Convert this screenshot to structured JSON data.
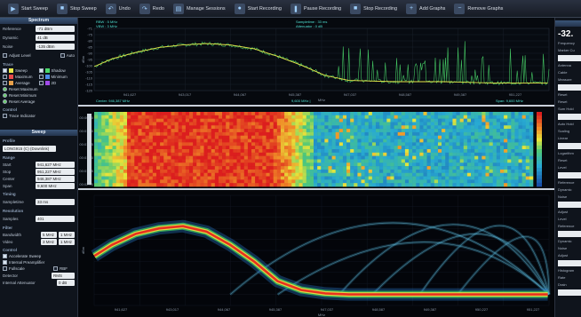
{
  "toolbar": [
    {
      "label": "Start Sweep",
      "icon": "play-icon"
    },
    {
      "label": "Stop Sweep",
      "icon": "stop-icon"
    },
    {
      "label": "Undo",
      "icon": "undo-icon"
    },
    {
      "label": "Redo",
      "icon": "redo-icon"
    },
    {
      "label": "Manage Sessions",
      "icon": "session-icon"
    },
    {
      "label": "Start Recording",
      "icon": "record-icon"
    },
    {
      "label": "Pause Recording",
      "icon": "pause-icon"
    },
    {
      "label": "Stop Recording",
      "icon": "stop-record-icon"
    },
    {
      "label": "Add Graphs",
      "icon": "add-graph-icon"
    },
    {
      "label": "Remove Graphs",
      "icon": "remove-graph-icon"
    }
  ],
  "spectrum_panel": {
    "title": "Spectrum",
    "reference_label": "Reference",
    "reference_value": "-71 dBm",
    "dynamic_label": "Dynamic",
    "dynamic_value": "41 dB",
    "noise_label": "Noise",
    "noise_value": "-135 dBm",
    "adjust_level_label": "Adjust Level",
    "auto_label": "Auto",
    "trace_header": "Trace",
    "traces": [
      {
        "label": "Sweep",
        "color": "#e8e84a",
        "checked": true
      },
      {
        "label": "Shadow",
        "color": "#4ad86a",
        "checked": true
      },
      {
        "label": "Maximum",
        "color": "#e84a4a",
        "checked": false
      },
      {
        "label": "Minimum",
        "color": "#4a8ae8",
        "checked": false
      },
      {
        "label": "Average",
        "color": "#e8a04a",
        "checked": false
      },
      {
        "label": "2D",
        "color": "#a04ae8",
        "checked": false
      }
    ],
    "radios": [
      {
        "label": "Reset Maximum",
        "on": true
      },
      {
        "label": "Reset Minimum",
        "on": true
      },
      {
        "label": "Reset Average",
        "on": true
      }
    ],
    "control_header": "Control",
    "trace_indicator_label": "Trace Indicator"
  },
  "sweep_panel": {
    "title": "Sweep",
    "profile_header": "Profile",
    "profile_value": "LONG915 (C) (Downlink)",
    "range_header": "Range",
    "start_label": "Start",
    "start_value": "941,627 MHz",
    "stop_label": "Stop",
    "stop_value": "951,227 MHz",
    "center_label": "Center",
    "center_value": "946,387 MHz",
    "span_label": "Span",
    "span_value": "9,600 MHz",
    "timing_header": "Timing",
    "sampletime_label": "Sampletime",
    "sampletime_value": "33 ms",
    "resolution_header": "Resolution",
    "samples_label": "Samples",
    "samples_value": "401",
    "filter_header": "Filter",
    "bandwidth_label": "Bandwidth",
    "bandwidth_value": "5 MHz",
    "bandwidth_value2": "1 MHz",
    "video_label": "Video",
    "video_value": "3 MHz",
    "video_value2": "1 MHz",
    "control_header": "Control",
    "accelerate_label": "Accelerate Sweep",
    "preamp_label": "Internal Preamplifier",
    "fullscale_label": "Fullscale",
    "rbf_label": "RBF",
    "detector_label": "Detector",
    "detector_value": "RMS",
    "attenuator_label": "Internal Attenuator",
    "attenuator_value": "0 dB"
  },
  "spectrum_graph": {
    "rbw": "RBW : 5 MHz",
    "vbw": "VBW : 3 MHz",
    "sampletime": "Sampletime : 33 ms",
    "attenuator": "Attenuator : 0 dB",
    "ylabel": "dBm",
    "xlabel": "MHz",
    "yticks": [
      "-71",
      "-75",
      "-80",
      "-85",
      "-90",
      "-95",
      "-100",
      "-105",
      "-110",
      "-115",
      "-120"
    ],
    "xticks": [
      "941,627",
      "943,017",
      "944,067",
      "945,387",
      "947,037",
      "948,587",
      "949,387",
      "951,227"
    ],
    "center_text": "Center: 946,387 MHz",
    "per_div": "9,600 MHz |",
    "span_text": "Span: 9,600 MHz"
  },
  "waterfall_graph": {
    "yticks": [
      "00:00:00",
      "00:01:00",
      "00:01:15",
      "00:01:30",
      "00:01:45",
      "00:02:00"
    ]
  },
  "persist_graph": {
    "ylabel": "dBm",
    "xlabel": "MHz",
    "xticks": [
      "941,627",
      "943,017",
      "944,067",
      "945,387",
      "947,037",
      "948,587",
      "949,387",
      "950,227",
      "951,227"
    ]
  },
  "right_panel": {
    "big_value": "-32.",
    "labels": [
      "Frequency",
      "Marker Cu",
      "Antenna",
      "Cable",
      "Measure",
      "Reset",
      "Reset",
      "Sum Hold",
      "Auto Hold",
      "Scaling",
      "Linear",
      "Logarithm",
      "Reset",
      "Level",
      "Reference",
      "Dynamic",
      "Noise",
      "Adjust",
      "Level",
      "Reference",
      "Dynamic",
      "Noise",
      "Adjust",
      "Histogram",
      "Rate",
      "Drain"
    ]
  },
  "chart_data": [
    {
      "type": "line",
      "x_range": [
        941.627,
        951.227
      ],
      "xlabel": "MHz",
      "ylabel": "dBm",
      "ylim": [
        -120,
        -71
      ],
      "series": [
        {
          "x": [
            941.63,
            942.0,
            942.5,
            943.0,
            943.5,
            944.0,
            944.5,
            945.0,
            945.5,
            946.0,
            946.5,
            947.0,
            948.0,
            949.0,
            950.0,
            951.2
          ],
          "values": [
            -101,
            -95,
            -90,
            -86,
            -84,
            -83,
            -84,
            -87,
            -93,
            -100,
            -108,
            -112,
            -113,
            -113,
            -114,
            -114
          ]
        }
      ]
    },
    {
      "type": "heatmap",
      "x_range": [
        941.627,
        951.227
      ],
      "y_range": [
        "00:00:00",
        "00:02:00"
      ]
    },
    {
      "type": "line",
      "xlabel": "MHz",
      "ylabel": "dBm",
      "series": [
        {
          "x": [
            941.63,
            942.0,
            942.5,
            943.0,
            943.5,
            944.0,
            944.5,
            945.0,
            945.5,
            946.0,
            946.5,
            947.0,
            948.0,
            949.0,
            950.0,
            951.2
          ],
          "values": [
            0.55,
            0.45,
            0.35,
            0.3,
            0.28,
            0.33,
            0.45,
            0.6,
            0.78,
            0.86,
            0.89,
            0.9,
            0.9,
            0.9,
            0.9,
            0.9
          ]
        }
      ]
    }
  ]
}
